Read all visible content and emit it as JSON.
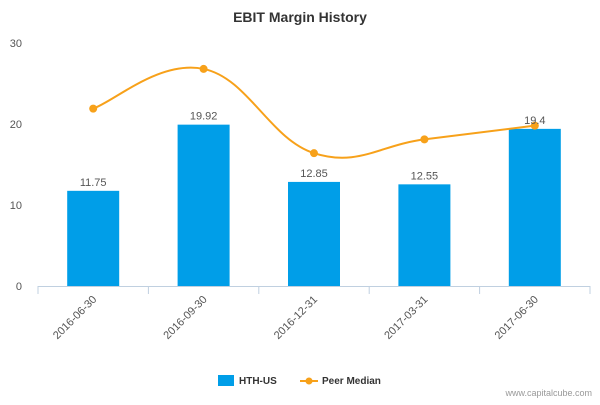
{
  "chart_data": {
    "type": "bar",
    "title": "EBIT Margin History",
    "categories": [
      "2016-06-30",
      "2016-09-30",
      "2016-12-31",
      "2017-03-31",
      "2017-06-30"
    ],
    "ylim": [
      0,
      30
    ],
    "yticks": [
      0,
      10,
      20,
      30
    ],
    "grid": false,
    "legend": "bottom-center",
    "series": [
      {
        "name": "HTH-US",
        "type": "bar",
        "color": "#009ee8",
        "values": [
          11.75,
          19.92,
          12.85,
          12.55,
          19.4
        ],
        "labels": [
          "11.75",
          "19.92",
          "12.85",
          "12.55",
          "19.4"
        ]
      },
      {
        "name": "Peer Median",
        "type": "line",
        "color": "#f7a11a",
        "values": [
          21.9,
          26.8,
          16.4,
          18.1,
          19.8
        ]
      }
    ]
  },
  "watermark": "www.capitalcube.com"
}
